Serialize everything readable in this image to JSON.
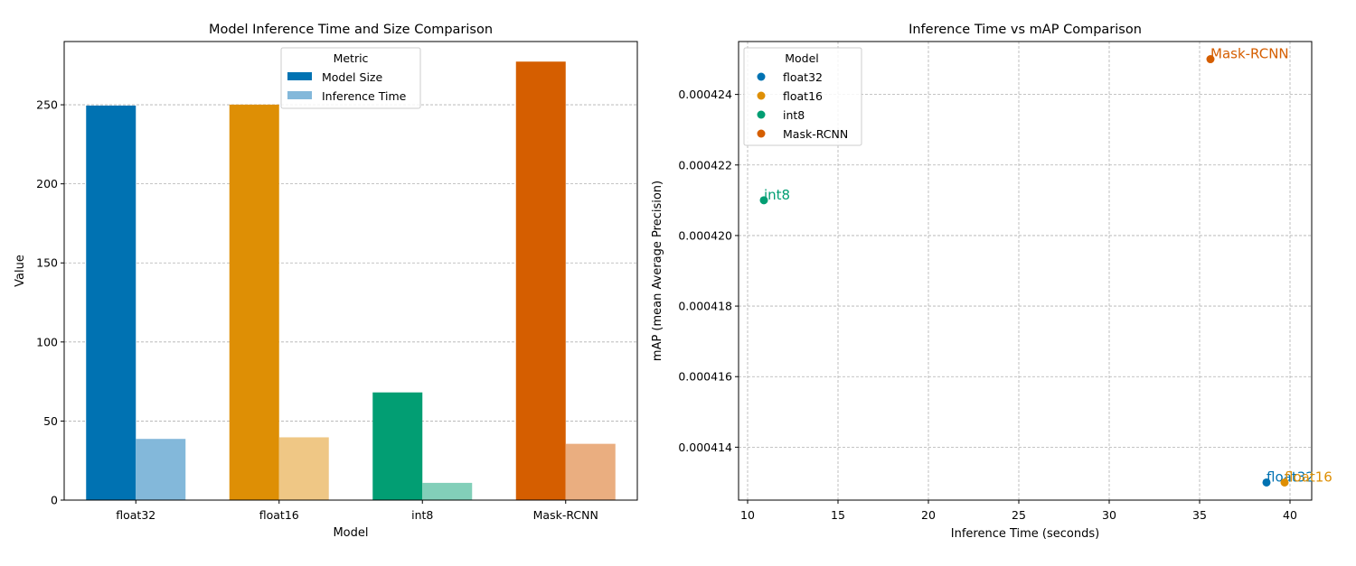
{
  "chart_data": [
    {
      "type": "bar",
      "title": "Model Inference Time and Size Comparison",
      "xlabel": "Model",
      "ylabel": "Value",
      "categories": [
        "float32",
        "float16",
        "int8",
        "Mask-RCNN"
      ],
      "series": [
        {
          "name": "Model Size",
          "values": [
            249.5,
            250.1,
            68.1,
            277.3
          ]
        },
        {
          "name": "Inference Time",
          "values": [
            38.7,
            39.7,
            10.9,
            35.6
          ]
        }
      ],
      "ylim": [
        0,
        290
      ],
      "yticks": [
        0,
        50,
        100,
        150,
        200,
        250
      ],
      "grid": "y",
      "legend": {
        "title": "Metric",
        "placement": "top-center"
      },
      "colors": {
        "Model Size": [
          "#0072b2",
          "#de8f05",
          "#029e73",
          "#d55e00"
        ],
        "Inference Time": [
          "#83b8da",
          "#efc785",
          "#82cfb9",
          "#eaae80"
        ],
        "legend": [
          "#0072b2",
          "#83b8da"
        ]
      }
    },
    {
      "type": "scatter",
      "title": "Inference Time vs mAP Comparison",
      "xlabel": "Inference Time (seconds)",
      "ylabel": "mAP (mean Average Precision)",
      "xlim": [
        9.5,
        41.2
      ],
      "ylim": [
        0.0004125,
        0.0004255
      ],
      "xticks": [
        10,
        15,
        20,
        25,
        30,
        35,
        40
      ],
      "yticks": [
        "0.000414",
        "0.000416",
        "0.000418",
        "0.000420",
        "0.000422",
        "0.000424"
      ],
      "grid": "both",
      "legend": {
        "title": "Model",
        "placement": "top-left"
      },
      "points": [
        {
          "name": "float32",
          "x": 38.7,
          "y": 0.000413,
          "color": "#0072b2"
        },
        {
          "name": "float16",
          "x": 39.7,
          "y": 0.000413,
          "color": "#de8f05"
        },
        {
          "name": "int8",
          "x": 10.9,
          "y": 0.000421,
          "color": "#029e73"
        },
        {
          "name": "Mask-RCNN",
          "x": 35.6,
          "y": 0.000425,
          "color": "#d55e00"
        }
      ]
    }
  ]
}
